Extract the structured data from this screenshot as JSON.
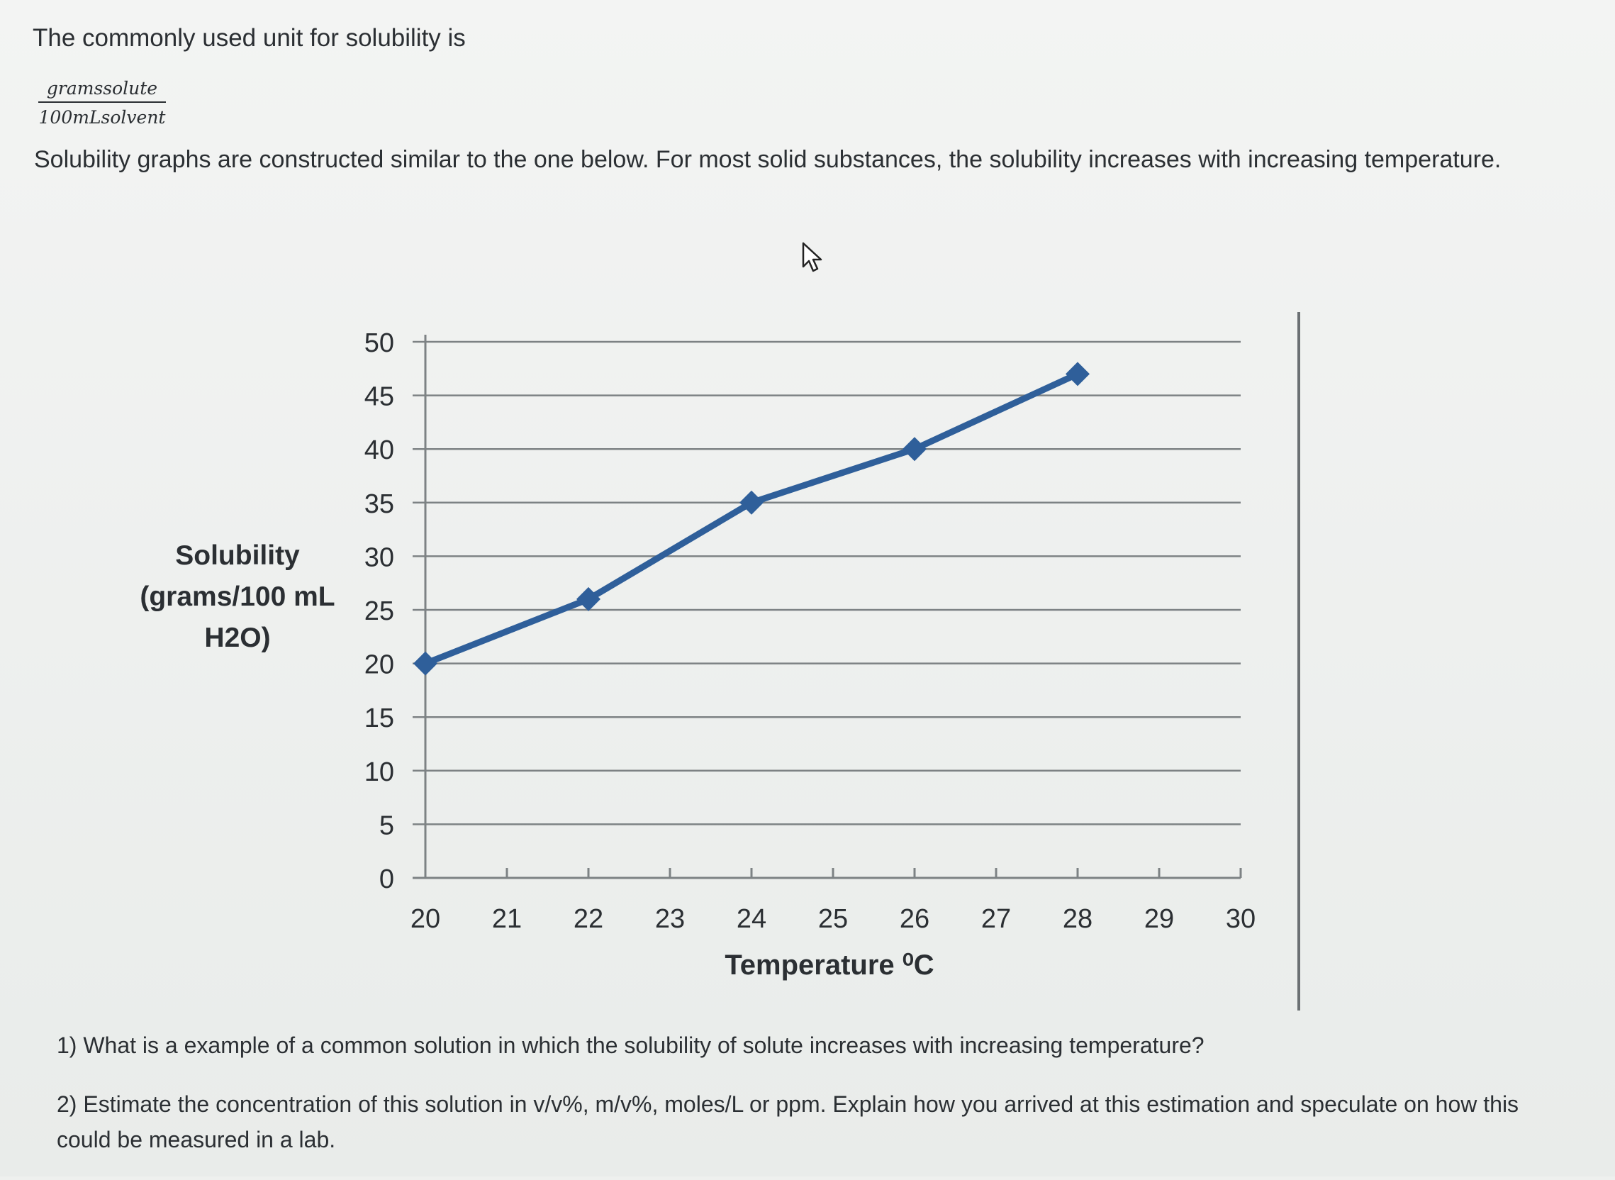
{
  "intro_text": "The commonly used unit for solubility is",
  "unit_fraction": {
    "numerator": "gramssolute",
    "denominator": "100mLsolvent"
  },
  "description": "Solubility graphs are constructed similar to the one below.  For most solid substances, the solubility increases with increasing temperature.",
  "questions": {
    "q1": "1) What is a example of a common solution in which the solubility of solute increases with increasing temperature?",
    "q2": "2) Estimate the concentration of this solution in v/v%,  m/v%,  moles/L  or ppm.  Explain how you arrived at this estimation and speculate on how this could be measured in a lab."
  },
  "icons": {
    "cursor": "mouse-pointer-icon"
  },
  "colors": {
    "series": "#2f5f9a",
    "grid": "#7d8284",
    "text": "#2b2f33"
  },
  "chart_data": {
    "type": "line",
    "title": "",
    "xlabel": "Temperature ⁰C",
    "ylabel": "Solubility (grams/100 mL H2O)",
    "ylabel_lines": [
      "Solubility",
      "(grams/100 mL",
      "H2O)"
    ],
    "xlim": [
      20,
      30
    ],
    "ylim": [
      0,
      50
    ],
    "x_ticks": [
      20,
      21,
      22,
      23,
      24,
      25,
      26,
      27,
      28,
      29,
      30
    ],
    "y_ticks": [
      0,
      5,
      10,
      15,
      20,
      25,
      30,
      35,
      40,
      45,
      50
    ],
    "grid": true,
    "legend": "none",
    "series": [
      {
        "name": "",
        "x": [
          20,
          22,
          24,
          26,
          28
        ],
        "y": [
          20,
          26,
          35,
          40,
          47
        ],
        "marker": "diamond"
      }
    ]
  }
}
